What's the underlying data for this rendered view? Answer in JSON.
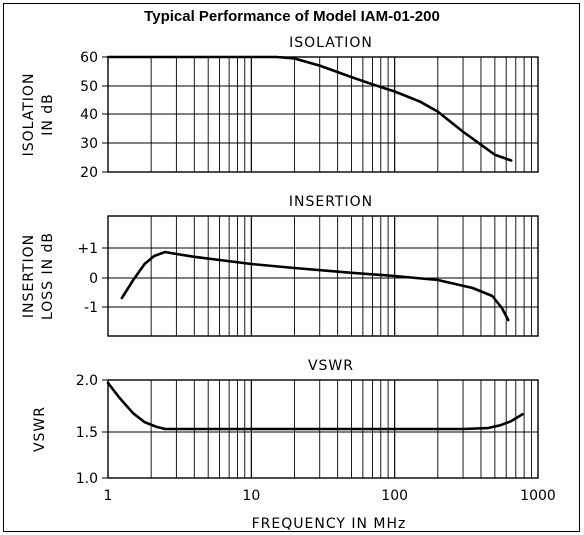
{
  "page": {
    "title": "Typical Performance of Model IAM-01-200"
  },
  "chart_data": [
    {
      "type": "line",
      "title": "ISOLATION",
      "ylabel": [
        "ISOLATION",
        "IN dB"
      ],
      "xscale": "log",
      "xlim": [
        1,
        1000
      ],
      "ylim": [
        20,
        60
      ],
      "grid": true,
      "yticks": [
        {
          "value": 60,
          "label": "60"
        },
        {
          "value": 50,
          "label": "50"
        },
        {
          "value": 40,
          "label": "40"
        },
        {
          "value": 30,
          "label": "30"
        },
        {
          "value": 20,
          "label": "20"
        }
      ],
      "series": [
        {
          "x": [
            1,
            10,
            15,
            20,
            30,
            50,
            70,
            100,
            150,
            200,
            300,
            400,
            500,
            650
          ],
          "values": [
            60,
            60,
            60,
            59.5,
            57,
            53,
            50.5,
            48,
            44.5,
            41,
            34,
            29.5,
            26,
            24
          ]
        }
      ]
    },
    {
      "type": "line",
      "title": "INSERTION",
      "ylabel": [
        "INSERTION",
        "LOSS IN dB"
      ],
      "xscale": "log",
      "xlim": [
        1,
        1000
      ],
      "ylim": [
        -1.5,
        1.5
      ],
      "grid": true,
      "yticks": [
        {
          "value": 1,
          "label": "+1"
        },
        {
          "value": 0,
          "label": "0"
        },
        {
          "value": -1,
          "label": "-1"
        }
      ],
      "series": [
        {
          "x": [
            1.25,
            1.5,
            1.8,
            2.1,
            2.5,
            3,
            4,
            6,
            10,
            20,
            50,
            100,
            200,
            350,
            480,
            560,
            620
          ],
          "values": [
            -0.55,
            -0.1,
            0.3,
            0.5,
            0.6,
            0.55,
            0.48,
            0.4,
            0.3,
            0.2,
            0.08,
            0.0,
            -0.1,
            -0.3,
            -0.5,
            -0.8,
            -1.1
          ]
        }
      ]
    },
    {
      "type": "line",
      "title": "VSWR",
      "ylabel": [
        "VSWR"
      ],
      "xlabel": "FREQUENCY IN MHz",
      "xscale": "log",
      "xlim": [
        1,
        1000
      ],
      "ylim": [
        1.0,
        2.0
      ],
      "grid": true,
      "yticks": [
        {
          "value": 2.0,
          "label": "2.0"
        },
        {
          "value": 1.5,
          "label": "1.5"
        },
        {
          "value": 1.0,
          "label": "1.0"
        }
      ],
      "xticks": [
        {
          "value": 1,
          "label": "1"
        },
        {
          "value": 10,
          "label": "10"
        },
        {
          "value": 100,
          "label": "100"
        },
        {
          "value": 1000,
          "label": "1000"
        }
      ],
      "series": [
        {
          "x": [
            1,
            1.2,
            1.5,
            1.8,
            2.2,
            2.5,
            5,
            20,
            100,
            300,
            450,
            550,
            650,
            780
          ],
          "values": [
            1.97,
            1.82,
            1.66,
            1.57,
            1.52,
            1.5,
            1.5,
            1.5,
            1.5,
            1.5,
            1.51,
            1.54,
            1.58,
            1.65
          ]
        }
      ]
    }
  ]
}
